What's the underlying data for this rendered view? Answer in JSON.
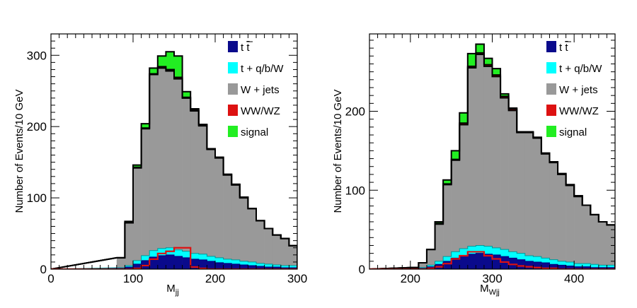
{
  "chart_data": [
    {
      "type": "bar",
      "subtype": "stacked-histogram",
      "xlabel_main": "M",
      "xlabel_sub": "jj",
      "ylabel": "Number of Events/10 GeV",
      "xlim": [
        0,
        300
      ],
      "ylim": [
        0,
        330
      ],
      "x_ticks": [
        "0",
        "100",
        "200",
        "300"
      ],
      "x_tick_values": [
        0,
        100,
        200,
        300
      ],
      "y_ticks": [
        "0",
        "100",
        "200",
        "300"
      ],
      "y_tick_values": [
        0,
        100,
        200,
        300
      ],
      "bin_width": 10,
      "bin_start": 80,
      "legend_position": "top-right",
      "legend": [
        {
          "key": "ttbar",
          "label_main": "t ",
          "label_bar": "t",
          "color": "#0a0a8c"
        },
        {
          "key": "single_top",
          "label": "t + q/b/W",
          "color": "#00ffff"
        },
        {
          "key": "wjets",
          "label": "W + jets",
          "color": "#999999"
        },
        {
          "key": "diboson",
          "label": "WW/WZ",
          "color": "#dd1111"
        },
        {
          "key": "signal",
          "label": "signal",
          "color": "#22ee22"
        }
      ],
      "series": [
        {
          "name": "ttbar",
          "values": [
            1,
            3,
            7,
            12,
            17,
            19,
            20,
            18,
            16,
            14,
            13,
            11,
            9,
            8,
            7,
            6,
            5,
            4,
            3,
            3,
            2,
            2
          ]
        },
        {
          "name": "single_top",
          "values": [
            1,
            2,
            5,
            7,
            9,
            10,
            10,
            9,
            9,
            8,
            8,
            7,
            7,
            6,
            6,
            5,
            5,
            4,
            4,
            3,
            3,
            3
          ]
        },
        {
          "name": "wjets",
          "values": [
            14,
            60,
            130,
            178,
            247,
            253,
            248,
            240,
            215,
            200,
            180,
            150,
            140,
            118,
            105,
            89,
            75,
            60,
            50,
            42,
            38,
            28
          ]
        },
        {
          "name": "diboson",
          "values": [
            0,
            0,
            1,
            1,
            1,
            2,
            2,
            2,
            1,
            1,
            1,
            1,
            1,
            1,
            1,
            1,
            0,
            0,
            0,
            0,
            0,
            0
          ]
        },
        {
          "name": "signal",
          "values": [
            0,
            2,
            3,
            6,
            8,
            15,
            25,
            30,
            8,
            2,
            1,
            0,
            0,
            0,
            0,
            0,
            0,
            0,
            0,
            0,
            0,
            0
          ]
        }
      ],
      "signal_outline": [
        0,
        0,
        1,
        5,
        14,
        22,
        25,
        30,
        30,
        3,
        1,
        0,
        0,
        0,
        0,
        0,
        0,
        0,
        0,
        0,
        0,
        0
      ]
    },
    {
      "type": "bar",
      "subtype": "stacked-histogram",
      "xlabel_main": "M",
      "xlabel_sub": "Wjj",
      "ylabel": "Number of Events/10 GeV",
      "xlim": [
        150,
        450
      ],
      "ylim": [
        0,
        298
      ],
      "x_ticks": [
        "200",
        "300",
        "400"
      ],
      "x_tick_values": [
        200,
        300,
        400
      ],
      "y_ticks": [
        "0",
        "100",
        "200"
      ],
      "y_tick_values": [
        0,
        100,
        200
      ],
      "bin_width": 10,
      "bin_start": 200,
      "legend_position": "top-right",
      "legend": [
        {
          "key": "ttbar",
          "label_main": "t ",
          "label_bar": "t",
          "color": "#0a0a8c"
        },
        {
          "key": "single_top",
          "label": "t + q/b/W",
          "color": "#00ffff"
        },
        {
          "key": "wjets",
          "label": "W + jets",
          "color": "#999999"
        },
        {
          "key": "diboson",
          "label": "WW/WZ",
          "color": "#dd1111"
        },
        {
          "key": "signal",
          "label": "signal",
          "color": "#22ee22"
        }
      ],
      "series": [
        {
          "name": "ttbar",
          "values": [
            0,
            1,
            3,
            6,
            10,
            14,
            17,
            19,
            20,
            19,
            18,
            16,
            14,
            12,
            10,
            9,
            8,
            6,
            5,
            4,
            3,
            3,
            2,
            2,
            2
          ]
        },
        {
          "name": "single_top",
          "values": [
            0,
            1,
            2,
            4,
            6,
            8,
            9,
            10,
            10,
            10,
            9,
            9,
            8,
            8,
            7,
            7,
            6,
            6,
            5,
            5,
            4,
            4,
            4,
            3,
            3
          ]
        },
        {
          "name": "wjets",
          "values": [
            2,
            6,
            20,
            47,
            91,
            116,
            157,
            226,
            242,
            228,
            217,
            192,
            179,
            153,
            156,
            150,
            132,
            123,
            110,
            97,
            85,
            74,
            63,
            55,
            51
          ]
        },
        {
          "name": "diboson",
          "values": [
            0,
            0,
            0,
            1,
            1,
            1,
            2,
            2,
            2,
            2,
            2,
            2,
            2,
            1,
            1,
            1,
            1,
            1,
            1,
            1,
            1,
            0,
            0,
            0,
            0
          ]
        },
        {
          "name": "signal",
          "values": [
            0,
            0,
            0,
            2,
            5,
            11,
            13,
            16,
            11,
            8,
            8,
            3,
            1,
            0,
            0,
            0,
            0,
            0,
            0,
            0,
            0,
            0,
            0,
            0,
            0
          ]
        }
      ],
      "signal_outline": [
        0,
        0,
        1,
        3,
        7,
        13,
        17,
        22,
        22,
        17,
        13,
        9,
        6,
        4,
        3,
        2,
        1,
        1,
        0,
        0,
        0,
        0,
        0,
        0,
        0
      ]
    }
  ]
}
